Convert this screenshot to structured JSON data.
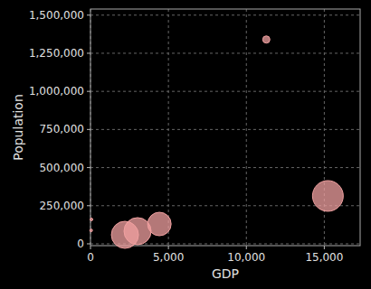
{
  "chart_data": {
    "type": "scatter",
    "x_label": "GDP",
    "y_label": "Population",
    "x": [
      11280,
      15230,
      4420,
      3020,
      2210,
      60,
      40
    ],
    "y": [
      1340000,
      314000,
      130000,
      83000,
      59000,
      160000,
      88000
    ],
    "sizes": [
      16,
      289,
      169,
      225,
      225,
      2,
      2
    ],
    "color": "#f0a0a0",
    "xlim": [
      0,
      17300
    ],
    "ylim": [
      -12000,
      1540000
    ],
    "xticks": [
      0,
      {
        "value": 5000,
        "label": "5,000"
      },
      {
        "value": 10000,
        "label": "10,000"
      },
      {
        "value": 15000,
        "label": "15,000"
      }
    ],
    "yticks": [
      0,
      {
        "value": 250000,
        "label": "250,000"
      },
      {
        "value": 500000,
        "label": "500,000"
      },
      {
        "value": 750000,
        "label": "750,000"
      },
      {
        "value": 1000000,
        "label": "1,000,000"
      },
      {
        "value": 1250000,
        "label": "1,250,000"
      },
      {
        "value": 1500000,
        "label": "1,500,000"
      }
    ],
    "grid": true
  }
}
